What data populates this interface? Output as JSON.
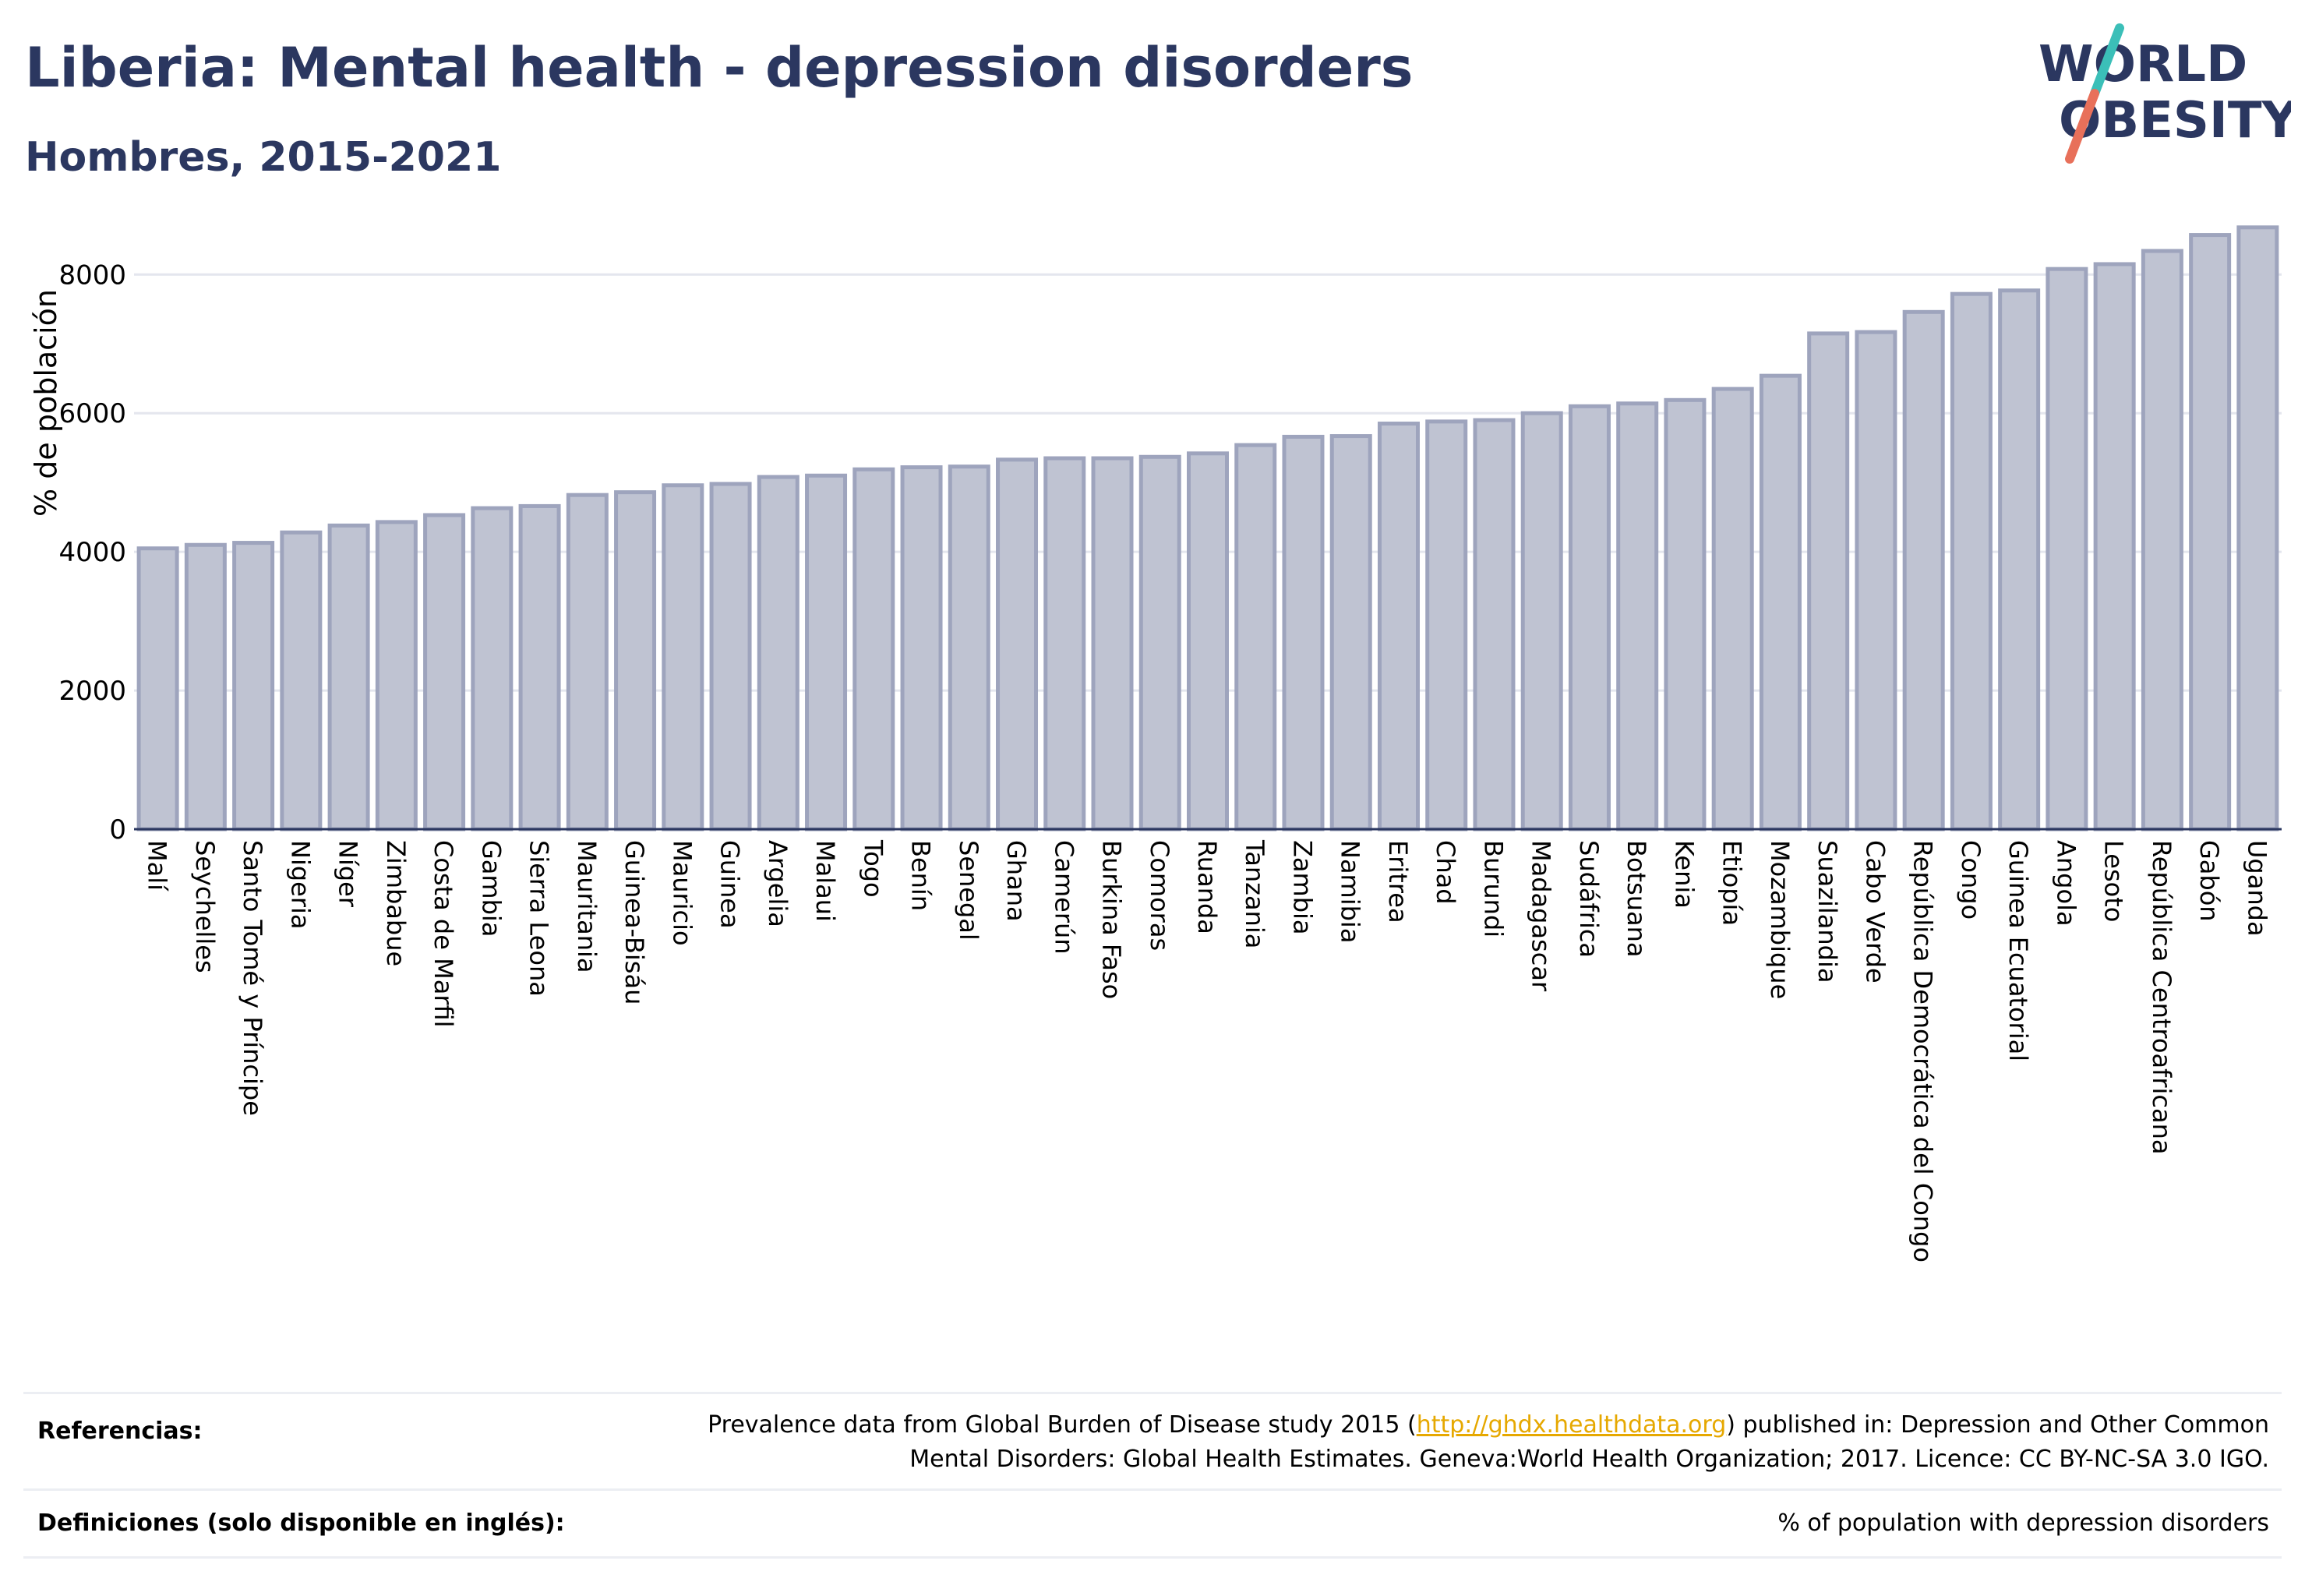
{
  "header": {
    "title": "Liberia: Mental health - depression disorders",
    "subtitle": "Hombres, 2015-2021"
  },
  "logo": {
    "line1": "WORLD",
    "line2": "OBESITY",
    "colors": {
      "text": "#2b3760",
      "slash_top": "#3bbfb8",
      "slash_bottom": "#e8705a"
    }
  },
  "chart_data": {
    "type": "bar",
    "ylabel": "% de población",
    "ylim": [
      0,
      8700
    ],
    "yticks": [
      0,
      2000,
      4000,
      6000,
      8000
    ],
    "grid": true,
    "bar_color": "#bfc3d2",
    "bar_edge_color": "#9ea4bd",
    "categories": [
      "Malí",
      "Seychelles",
      "Santo Tomé y Príncipe",
      "Nigeria",
      "Níger",
      "Zimbabue",
      "Costa de Marfil",
      "Gambia",
      "Sierra Leona",
      "Mauritania",
      "Guinea-Bisáu",
      "Mauricio",
      "Guinea",
      "Argelia",
      "Malaui",
      "Togo",
      "Benín",
      "Senegal",
      "Ghana",
      "Camerún",
      "Burkina Faso",
      "Comoras",
      "Ruanda",
      "Tanzania",
      "Zambia",
      "Namibia",
      "Eritrea",
      "Chad",
      "Burundi",
      "Madagascar",
      "Sudáfrica",
      "Botsuana",
      "Kenia",
      "Etiopía",
      "Mozambique",
      "Suazilandia",
      "Cabo Verde",
      "República Democrática del Congo",
      "Congo",
      "Guinea Ecuatorial",
      "Angola",
      "Lesoto",
      "República Centroafricana",
      "Gabón",
      "Uganda"
    ],
    "values": [
      4050,
      4100,
      4130,
      4280,
      4380,
      4430,
      4530,
      4630,
      4660,
      4820,
      4860,
      4960,
      4980,
      5080,
      5100,
      5190,
      5220,
      5230,
      5330,
      5350,
      5350,
      5370,
      5420,
      5540,
      5660,
      5670,
      5850,
      5880,
      5900,
      6000,
      6100,
      6140,
      6190,
      6350,
      6540,
      7150,
      7170,
      7460,
      7720,
      7770,
      8080,
      8150,
      8340,
      8570,
      8680
    ]
  },
  "footer": {
    "references_label": "Referencias:",
    "references_pre": "Prevalence data from Global Burden of Disease study 2015 (",
    "references_link": "http://ghdx.healthdata.org",
    "references_post": ") published in: Depression and Other Common",
    "references_line2": "Mental Disorders: Global Health Estimates. Geneva:World Health Organization; 2017. Licence: CC BY-NC-SA 3.0 IGO.",
    "definitions_label": "Definiciones (solo disponible en inglés):",
    "definitions_text": "% of population with depression disorders"
  }
}
